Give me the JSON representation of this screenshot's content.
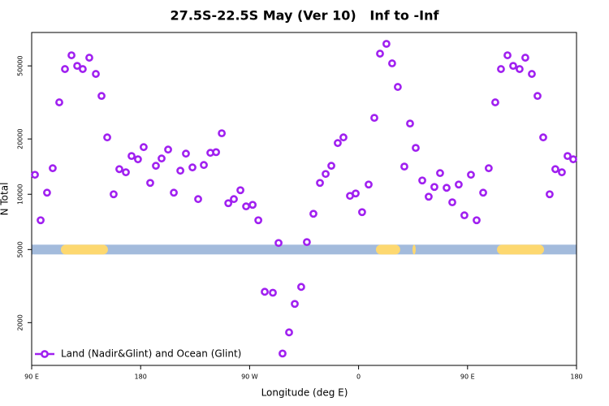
{
  "chart_data": {
    "type": "scatter",
    "title": "27.5S-22.5S May (Ver 10)   Inf to -Inf",
    "xlabel": "Longitude (deg E)",
    "ylabel": "N Total",
    "log_y": true,
    "legend": "lower left",
    "xlim": [
      90,
      540
    ],
    "xticks": [
      {
        "value": 90,
        "label": "90 E"
      },
      180,
      {
        "value": 270,
        "label": "90 W"
      },
      {
        "value": 360,
        "label": "0"
      },
      {
        "value": 450,
        "label": "90 E"
      },
      {
        "value": 540,
        "label": "180"
      }
    ],
    "ylim": [
      1170,
      76000
    ],
    "yticks": [
      2000,
      5000,
      10000,
      20000,
      50000
    ],
    "band_color": "#a3bbdc",
    "land_color": "#fdd870",
    "land_spans": [
      [
        114.1,
        153.0
      ],
      [
        374.3,
        394.4
      ],
      [
        404.5,
        407.2
      ],
      [
        474.3,
        513.2
      ]
    ],
    "series": [
      {
        "name": "Land (Nadir&Glint) and Ocean (Glint)",
        "color": "#a020f0",
        "x": [
          92.7,
          97.4,
          102.7,
          107.4,
          112.8,
          117.5,
          122.9,
          127.6,
          132.2,
          137.6,
          143.0,
          147.7,
          152.4,
          157.7,
          162.4,
          167.8,
          172.5,
          177.8,
          182.5,
          187.9,
          192.6,
          197.3,
          202.7,
          207.4,
          212.8,
          217.4,
          222.8,
          227.5,
          232.2,
          237.6,
          242.3,
          247.0,
          252.4,
          257.0,
          262.4,
          267.1,
          272.5,
          277.2,
          282.5,
          289.2,
          293.9,
          297.2,
          302.6,
          307.3,
          312.6,
          317.3,
          322.7,
          328.1,
          332.8,
          337.5,
          342.8,
          347.5,
          352.9,
          357.6,
          362.9,
          368.3,
          373.0,
          377.7,
          383.0,
          387.7,
          392.4,
          397.8,
          402.5,
          407.2,
          412.6,
          417.9,
          422.6,
          427.3,
          432.7,
          437.4,
          442.7,
          447.4,
          452.8,
          457.5,
          462.9,
          467.5,
          472.9,
          477.6,
          483.0,
          487.7,
          493.0,
          497.7,
          503.1,
          507.8,
          512.5,
          517.8,
          522.5,
          527.9,
          532.6,
          537.3
        ],
        "values": [
          12770,
          7220,
          10200,
          13860,
          31650,
          48050,
          57100,
          50000,
          48050,
          55400,
          45200,
          34300,
          20400,
          10000,
          13700,
          13170,
          16150,
          15500,
          18060,
          11530,
          14290,
          15660,
          17510,
          10200,
          13440,
          16640,
          14000,
          9410,
          14430,
          16810,
          16950,
          21480,
          8940,
          9410,
          10520,
          8590,
          8760,
          7220,
          2945,
          2910,
          5430,
          1358,
          1770,
          2530,
          3130,
          5490,
          7830,
          11530,
          12900,
          14290,
          19000,
          20400,
          9800,
          10100,
          7990,
          11300,
          26060,
          58300,
          65900,
          51600,
          38400,
          14150,
          24270,
          17880,
          11890,
          9700,
          10960,
          13040,
          10840,
          9040,
          11300,
          7680,
          12770,
          7220,
          10200,
          13860,
          31650,
          48050,
          57100,
          50000,
          48050,
          55400,
          45200,
          34300,
          20400,
          10000,
          13700,
          13170,
          16150,
          15500
        ]
      }
    ]
  }
}
